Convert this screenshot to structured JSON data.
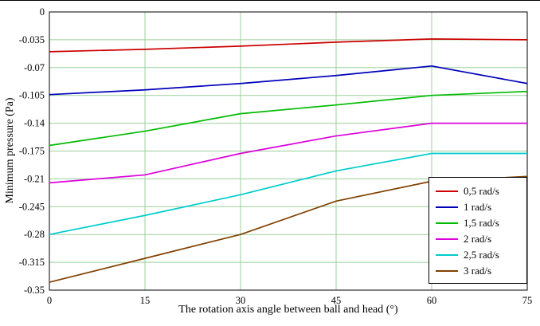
{
  "chart_data": {
    "type": "line",
    "title": "",
    "xlabel": "The rotation axis angle between ball and head (°)",
    "ylabel": "Minimum pressure (Pa)",
    "x": [
      0,
      15,
      30,
      45,
      60,
      75
    ],
    "xlim": [
      0,
      75
    ],
    "ylim": [
      -0.35,
      0
    ],
    "x_tick_values": [
      0,
      15,
      30,
      45,
      60,
      75
    ],
    "x_tick_labels": [
      "0",
      "15",
      "30",
      "45",
      "60",
      "75"
    ],
    "y_tick_values": [
      0,
      -0.035,
      -0.07,
      -0.105,
      -0.14,
      -0.175,
      -0.21,
      -0.245,
      -0.28,
      -0.315,
      -0.35
    ],
    "y_tick_labels": [
      "0",
      "-0.035",
      "-0.07",
      "-0.105",
      "-0.14",
      "-0.175",
      "-0.21",
      "-0.245",
      "-0.28",
      "-0.315",
      "-0.35"
    ],
    "grid": true,
    "grid_color": "#9cd09c",
    "axis_color": "#000000",
    "legend_position": "bottom-right",
    "series": [
      {
        "name": "0,5 rad/s",
        "color": "#cc0000",
        "values": [
          -0.05,
          -0.047,
          -0.043,
          -0.038,
          -0.034,
          -0.035
        ]
      },
      {
        "name": "1 rad/s",
        "color": "#0000bb",
        "values": [
          -0.104,
          -0.098,
          -0.09,
          -0.08,
          -0.068,
          -0.09
        ]
      },
      {
        "name": "1,5 rad/s",
        "color": "#00bb00",
        "values": [
          -0.168,
          -0.15,
          -0.128,
          -0.117,
          -0.105,
          -0.1
        ]
      },
      {
        "name": "2 rad/s",
        "color": "#dd00dd",
        "values": [
          -0.215,
          -0.205,
          -0.178,
          -0.156,
          -0.14,
          -0.14
        ]
      },
      {
        "name": "2,5 rad/s",
        "color": "#00cccc",
        "values": [
          -0.28,
          -0.256,
          -0.23,
          -0.2,
          -0.178,
          -0.178
        ]
      },
      {
        "name": "3 rad/s",
        "color": "#804000",
        "values": [
          -0.34,
          -0.31,
          -0.28,
          -0.238,
          -0.213,
          -0.207
        ]
      }
    ]
  }
}
